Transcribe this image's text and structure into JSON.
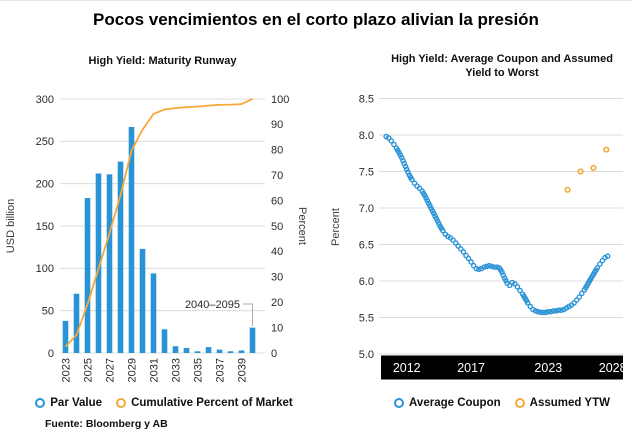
{
  "title": "Pocos vencimientos en el corto plazo alivian la presión",
  "source": "Fuente: Bloomberg y AB",
  "colors": {
    "series_blue": "#2A93D5",
    "series_orange": "#F5A93B",
    "grid": "#DCDCDC",
    "tick_text": "#2B2B2B",
    "axis_band_bg": "#000000",
    "axis_band_text": "#FFFFFF",
    "annotation_line": "#ADADAD"
  },
  "chart_data": [
    {
      "type": "bar",
      "title": "High Yield: Maturity Runway",
      "ylabel_left": "USD billion",
      "ylabel_right": "Percent",
      "ylim_left": [
        0,
        300
      ],
      "yticks_left": [
        0,
        50,
        100,
        150,
        200,
        250,
        300
      ],
      "ylim_right": [
        0,
        100
      ],
      "yticks_right": [
        0,
        10,
        20,
        30,
        40,
        50,
        60,
        70,
        80,
        90,
        100
      ],
      "grid": true,
      "legend_position": "bottom",
      "xtick_every": 2,
      "categories": [
        "2023",
        "2024",
        "2025",
        "2026",
        "2027",
        "2028",
        "2029",
        "2030",
        "2031",
        "2032",
        "2033",
        "2034",
        "2035",
        "2036",
        "2037",
        "2038",
        "2039",
        "2040–2095"
      ],
      "annotation": {
        "text": "2040–2095",
        "target_category": "2040–2095"
      },
      "series": [
        {
          "name": "Par Value",
          "kind": "bar",
          "axis": "left",
          "values": [
            38,
            70,
            183,
            212,
            211,
            226,
            267,
            123,
            94,
            28,
            8,
            6,
            2,
            7,
            4,
            2,
            3,
            30
          ]
        },
        {
          "name": "Cumulative Percent of Market",
          "kind": "line",
          "axis": "right",
          "values": [
            2.5,
            7.1,
            19.2,
            33.2,
            47.2,
            62.1,
            79.7,
            87.9,
            94.1,
            95.9,
            96.4,
            96.8,
            97.0,
            97.4,
            97.7,
            97.8,
            98.0,
            100
          ]
        }
      ]
    },
    {
      "type": "scatter",
      "title": "High Yield: Average Coupon and Assumed Yield to Worst",
      "title_lines": [
        "High Yield: Average Coupon and Assumed",
        "Yield to Worst"
      ],
      "ylabel": "Percent",
      "ylim": [
        5.0,
        8.5
      ],
      "yticks": [
        5.0,
        5.5,
        6.0,
        6.5,
        7.0,
        7.5,
        8.0,
        8.5
      ],
      "xlim": [
        2010.0,
        2028.8
      ],
      "xticks": [
        2012,
        2017,
        2023,
        2028
      ],
      "grid": true,
      "legend_position": "bottom",
      "series": [
        {
          "name": "Average Coupon",
          "points": [
            [
              2010.4,
              7.98
            ],
            [
              2010.6,
              7.96
            ],
            [
              2010.8,
              7.92
            ],
            [
              2011.0,
              7.87
            ],
            [
              2011.2,
              7.82
            ],
            [
              2011.4,
              7.76
            ],
            [
              2011.6,
              7.69
            ],
            [
              2011.8,
              7.61
            ],
            [
              2012.0,
              7.53
            ],
            [
              2012.2,
              7.45
            ],
            [
              2012.4,
              7.39
            ],
            [
              2012.6,
              7.34
            ],
            [
              2012.8,
              7.3
            ],
            [
              2013.0,
              7.27
            ],
            [
              2013.2,
              7.23
            ],
            [
              2013.4,
              7.17
            ],
            [
              2013.6,
              7.1
            ],
            [
              2013.8,
              7.03
            ],
            [
              2014.0,
              6.96
            ],
            [
              2014.2,
              6.89
            ],
            [
              2014.4,
              6.82
            ],
            [
              2014.6,
              6.75
            ],
            [
              2014.8,
              6.69
            ],
            [
              2015.0,
              6.64
            ],
            [
              2015.2,
              6.61
            ],
            [
              2015.4,
              6.59
            ],
            [
              2015.6,
              6.56
            ],
            [
              2015.8,
              6.52
            ],
            [
              2016.0,
              6.48
            ],
            [
              2016.2,
              6.44
            ],
            [
              2016.4,
              6.4
            ],
            [
              2016.6,
              6.35
            ],
            [
              2016.8,
              6.31
            ],
            [
              2017.0,
              6.26
            ],
            [
              2017.2,
              6.21
            ],
            [
              2017.4,
              6.17
            ],
            [
              2017.6,
              6.16
            ],
            [
              2017.8,
              6.17
            ],
            [
              2018.0,
              6.19
            ],
            [
              2018.2,
              6.2
            ],
            [
              2018.4,
              6.21
            ],
            [
              2018.6,
              6.2
            ],
            [
              2018.8,
              6.19
            ],
            [
              2019.0,
              6.19
            ],
            [
              2019.2,
              6.18
            ],
            [
              2019.4,
              6.12
            ],
            [
              2019.6,
              6.04
            ],
            [
              2019.8,
              5.97
            ],
            [
              2020.0,
              5.94
            ],
            [
              2020.2,
              5.98
            ],
            [
              2020.4,
              5.96
            ],
            [
              2020.6,
              5.92
            ],
            [
              2020.8,
              5.87
            ],
            [
              2021.0,
              5.82
            ],
            [
              2021.2,
              5.76
            ],
            [
              2021.4,
              5.7
            ],
            [
              2021.6,
              5.65
            ],
            [
              2021.8,
              5.61
            ],
            [
              2022.0,
              5.59
            ],
            [
              2022.2,
              5.58
            ],
            [
              2022.4,
              5.57
            ],
            [
              2022.6,
              5.57
            ],
            [
              2022.8,
              5.57
            ],
            [
              2023.0,
              5.58
            ],
            [
              2023.2,
              5.58
            ],
            [
              2023.4,
              5.59
            ],
            [
              2023.6,
              5.59
            ],
            [
              2023.8,
              5.6
            ],
            [
              2024.0,
              5.6
            ],
            [
              2024.2,
              5.61
            ],
            [
              2024.4,
              5.63
            ],
            [
              2024.6,
              5.65
            ],
            [
              2024.8,
              5.67
            ],
            [
              2025.0,
              5.7
            ],
            [
              2025.2,
              5.74
            ],
            [
              2025.4,
              5.78
            ],
            [
              2025.6,
              5.83
            ],
            [
              2025.8,
              5.88
            ],
            [
              2026.0,
              5.94
            ],
            [
              2026.2,
              6.0
            ],
            [
              2026.4,
              6.06
            ],
            [
              2026.6,
              6.12
            ],
            [
              2026.8,
              6.18
            ],
            [
              2027.0,
              6.23
            ],
            [
              2027.2,
              6.28
            ],
            [
              2027.4,
              6.32
            ],
            [
              2027.6,
              6.34
            ]
          ]
        },
        {
          "name": "Assumed YTW",
          "points": [
            [
              2024.5,
              7.25
            ],
            [
              2025.5,
              7.5
            ],
            [
              2026.5,
              7.55
            ],
            [
              2027.5,
              7.8
            ]
          ]
        }
      ]
    }
  ]
}
